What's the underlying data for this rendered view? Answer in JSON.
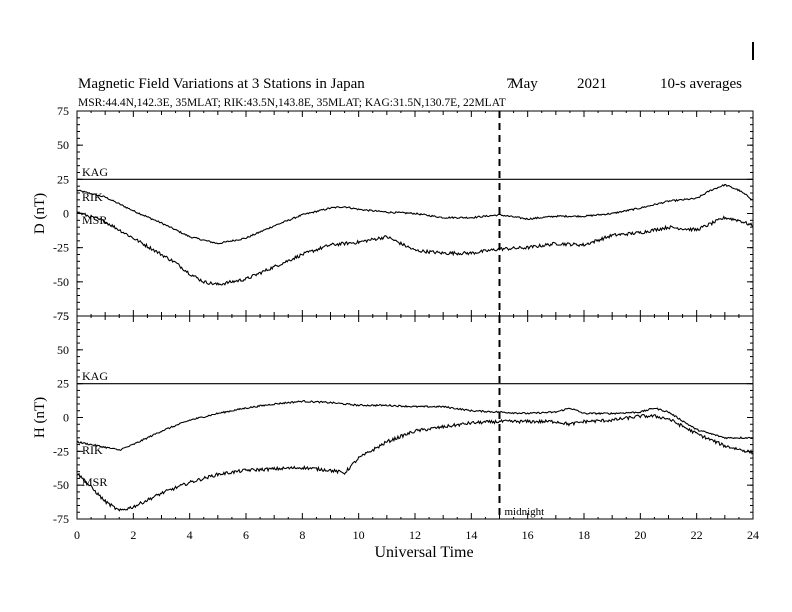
{
  "chart_data": [
    {
      "type": "line",
      "title": "Magnetic Field Variations at 3 Stations in Japan",
      "date": {
        "day": "7",
        "month": "May",
        "year": "2021"
      },
      "averaging": "10-s averages",
      "subtitle": "MSR:44.4N,142.3E, 35MLAT;  RIK:43.5N,143.8E, 35MLAT;  KAG:31.5N,130.7E, 22MLAT",
      "xlabel": "Universal Time",
      "ylabel": "D (nT)",
      "xlim": [
        0,
        24
      ],
      "ylim": [
        -75,
        75
      ],
      "x_ticks": [
        "0",
        "2",
        "4",
        "6",
        "8",
        "10",
        "12",
        "14",
        "16",
        "18",
        "20",
        "22",
        "24"
      ],
      "y_ticks": [
        "75",
        "50",
        "25",
        "0",
        "-25",
        "-50",
        "-75"
      ],
      "midnight_marker_ut": 15,
      "series": [
        {
          "name": "KAG",
          "x": [
            0,
            24
          ],
          "y": [
            25,
            25
          ]
        },
        {
          "name": "RIK",
          "x": [
            0,
            1,
            2,
            3,
            4,
            5,
            6,
            7,
            8,
            9,
            9.5,
            10,
            11,
            12,
            13,
            14,
            15,
            16,
            17,
            18,
            19,
            20,
            21,
            22,
            22.5,
            23,
            23.5,
            24
          ],
          "y": [
            17,
            12,
            2,
            -7,
            -17,
            -22,
            -18,
            -9,
            -1,
            4,
            5,
            3,
            1,
            0,
            -3,
            -3,
            -1,
            -4,
            -2,
            -2,
            0,
            4,
            9,
            11,
            17,
            21,
            17,
            10
          ]
        },
        {
          "name": "MSR",
          "x": [
            0,
            1,
            2,
            3,
            3.5,
            4,
            4.5,
            5,
            6,
            7,
            8,
            9,
            10,
            11,
            12,
            13,
            14,
            15,
            16,
            17,
            18,
            19,
            20,
            21,
            22,
            23,
            23.5,
            24
          ],
          "y": [
            1,
            -6,
            -18,
            -30,
            -36,
            -44,
            -50,
            -52,
            -48,
            -39,
            -30,
            -23,
            -21,
            -17,
            -27,
            -29,
            -29,
            -26,
            -25,
            -22,
            -23,
            -16,
            -14,
            -10,
            -12,
            -3,
            -5,
            -9
          ]
        }
      ]
    },
    {
      "type": "line",
      "xlabel": "Universal Time",
      "ylabel": "H (nT)",
      "xlim": [
        0,
        24
      ],
      "ylim": [
        -75,
        75
      ],
      "x_ticks": [
        "0",
        "2",
        "4",
        "6",
        "8",
        "10",
        "12",
        "14",
        "16",
        "18",
        "20",
        "22",
        "24"
      ],
      "y_ticks": [
        "75",
        "50",
        "25",
        "0",
        "-25",
        "-50",
        "-75"
      ],
      "midnight_marker_ut": 15,
      "annotations": [
        "midnight"
      ],
      "series": [
        {
          "name": "KAG",
          "x": [
            0,
            24
          ],
          "y": [
            25,
            25
          ]
        },
        {
          "name": "RIK",
          "x": [
            0,
            1,
            1.5,
            2,
            3,
            4,
            5,
            6,
            7,
            8,
            9,
            10,
            11,
            12,
            13,
            14,
            15,
            16,
            17,
            17.5,
            18,
            19,
            20,
            20.5,
            21,
            22,
            23,
            24
          ],
          "y": [
            -18,
            -22,
            -24,
            -20,
            -10,
            -2,
            3,
            7,
            10,
            12,
            11,
            9,
            9,
            8,
            8,
            5,
            4,
            3,
            4,
            7,
            3,
            3,
            4,
            7,
            4,
            -9,
            -15,
            -15
          ]
        },
        {
          "name": "MSR",
          "x": [
            0,
            1,
            1.5,
            2,
            3,
            4,
            5,
            6,
            7,
            8,
            9,
            9.5,
            10,
            11,
            12,
            13,
            14,
            15,
            16,
            17,
            17.5,
            18,
            19,
            20,
            20.5,
            21,
            22,
            23,
            24
          ],
          "y": [
            -41,
            -62,
            -69,
            -66,
            -56,
            -48,
            -42,
            -39,
            -38,
            -37,
            -39,
            -41,
            -30,
            -18,
            -10,
            -7,
            -4,
            -3,
            -3,
            -3,
            -5,
            -3,
            -2,
            1,
            1,
            -1,
            -12,
            -21,
            -26
          ]
        }
      ]
    }
  ]
}
